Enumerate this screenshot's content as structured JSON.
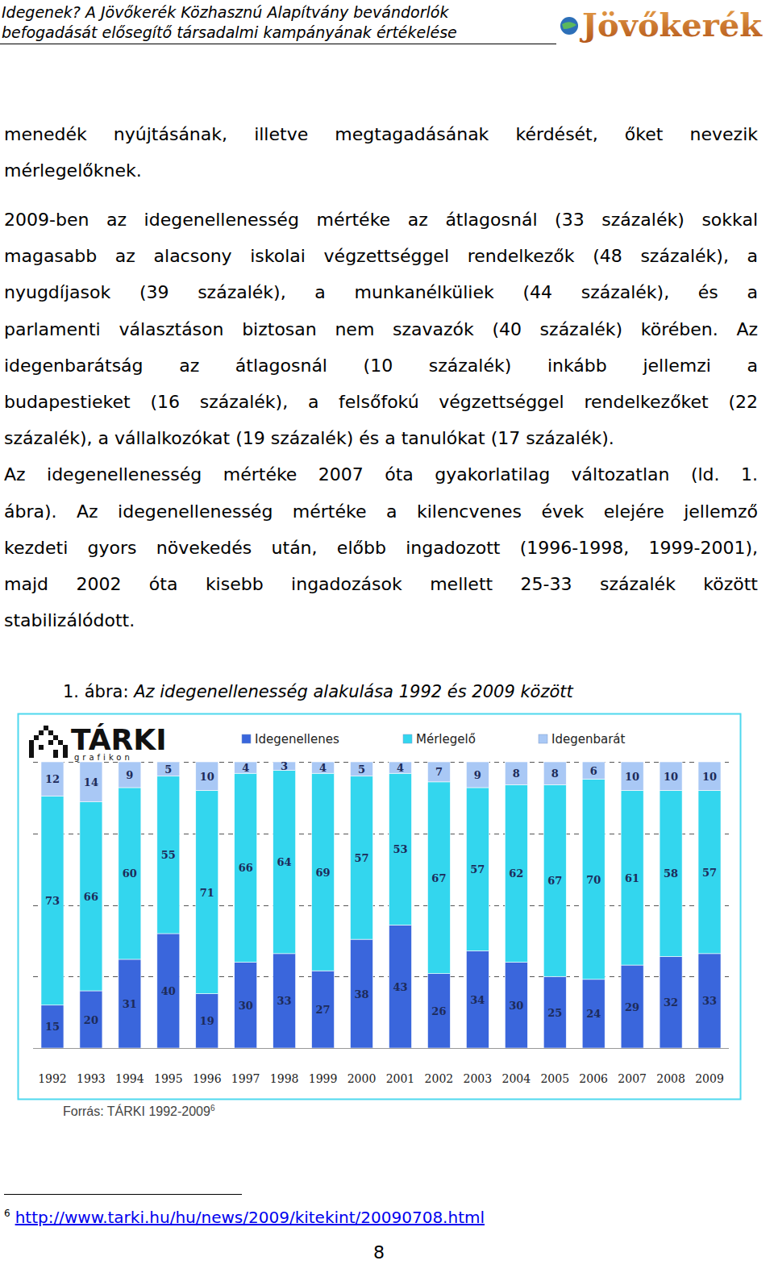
{
  "header": {
    "title_lines": [
      "Idegenek? A Jövőkerék Közhasznú Alapítvány bevándorlók",
      "befogadását elősegítő társadalmi kampányának értékelése"
    ],
    "logo": "Jövőkerék"
  },
  "paragraphs": [
    [
      "menedék nyújtásának, illetve megtagadásának kérdését, őket nevezik",
      "mérlegelőknek."
    ],
    [
      "2009-ben az idegenellenesség mértéke az átlagosnál (33 százalék) sokkal",
      "magasabb az alacsony iskolai végzettséggel rendelkezők (48 százalék), a",
      "nyugdíjasok (39 százalék), a munkanélküliek (44 százalék), és a",
      "parlamenti választáson biztosan nem szavazók (40 százalék) körében. Az",
      "idegenbarátság az átlagosnál (10 százalék) inkább jellemzi a",
      "budapestieket (16 százalék), a felsőfokú végzettséggel rendelkezőket (22",
      "százalék), a vállalkozókat (19 százalék) és a tanulókat (17 százalék)."
    ],
    [
      "Az idegenellenesség mértéke 2007 óta gyakorlatilag változatlan (ld. 1.",
      "ábra). Az idegenellenesség mértéke a kilencvenes évek elejére jellemző",
      "kezdeti gyors növekedés után, előbb ingadozott (1996-1998, 1999-2001),",
      "majd 2002 óta kisebb ingadozások mellett 25-33 százalék között",
      "stabilizálódott."
    ]
  ],
  "figure": {
    "number": "1. ábra:",
    "caption": "Az idegenellenesség alakulása 1992 és 2009 között",
    "brand": "TÁRKI",
    "brand_sub": "grafikon",
    "source": "Forrás: TÁRKI 1992-2009",
    "source_ref": "6"
  },
  "chart_data": {
    "type": "bar",
    "stacked": true,
    "categories": [
      "1992",
      "1993",
      "1994",
      "1995",
      "1996",
      "1997",
      "1998",
      "1999",
      "2000",
      "2001",
      "2002",
      "2003",
      "2004",
      "2005",
      "2006",
      "2007",
      "2008",
      "2009"
    ],
    "series": [
      {
        "name": "Idegenellenes",
        "color": "#3a66dc",
        "values": [
          15,
          20,
          31,
          40,
          19,
          30,
          33,
          27,
          38,
          43,
          26,
          34,
          30,
          25,
          24,
          29,
          32,
          33
        ]
      },
      {
        "name": "Mérlegelő",
        "color": "#33d6ee",
        "values": [
          73,
          66,
          60,
          55,
          71,
          66,
          64,
          69,
          57,
          53,
          67,
          57,
          62,
          67,
          70,
          61,
          58,
          57
        ]
      },
      {
        "name": "Idegenbarát",
        "color": "#a9c8f5",
        "values": [
          12,
          14,
          9,
          5,
          10,
          4,
          3,
          4,
          5,
          4,
          7,
          9,
          8,
          8,
          6,
          10,
          10,
          10
        ]
      }
    ],
    "ylim": [
      0,
      100
    ],
    "yticks": [
      0,
      25,
      50,
      75,
      100
    ],
    "grid": true,
    "legend": "top",
    "data_labels": true,
    "tick_labels": "x"
  },
  "footnote": {
    "ref": "6",
    "url": "http://www.tarki.hu/hu/news/2009/kitekint/20090708.html"
  },
  "page_number": "8"
}
